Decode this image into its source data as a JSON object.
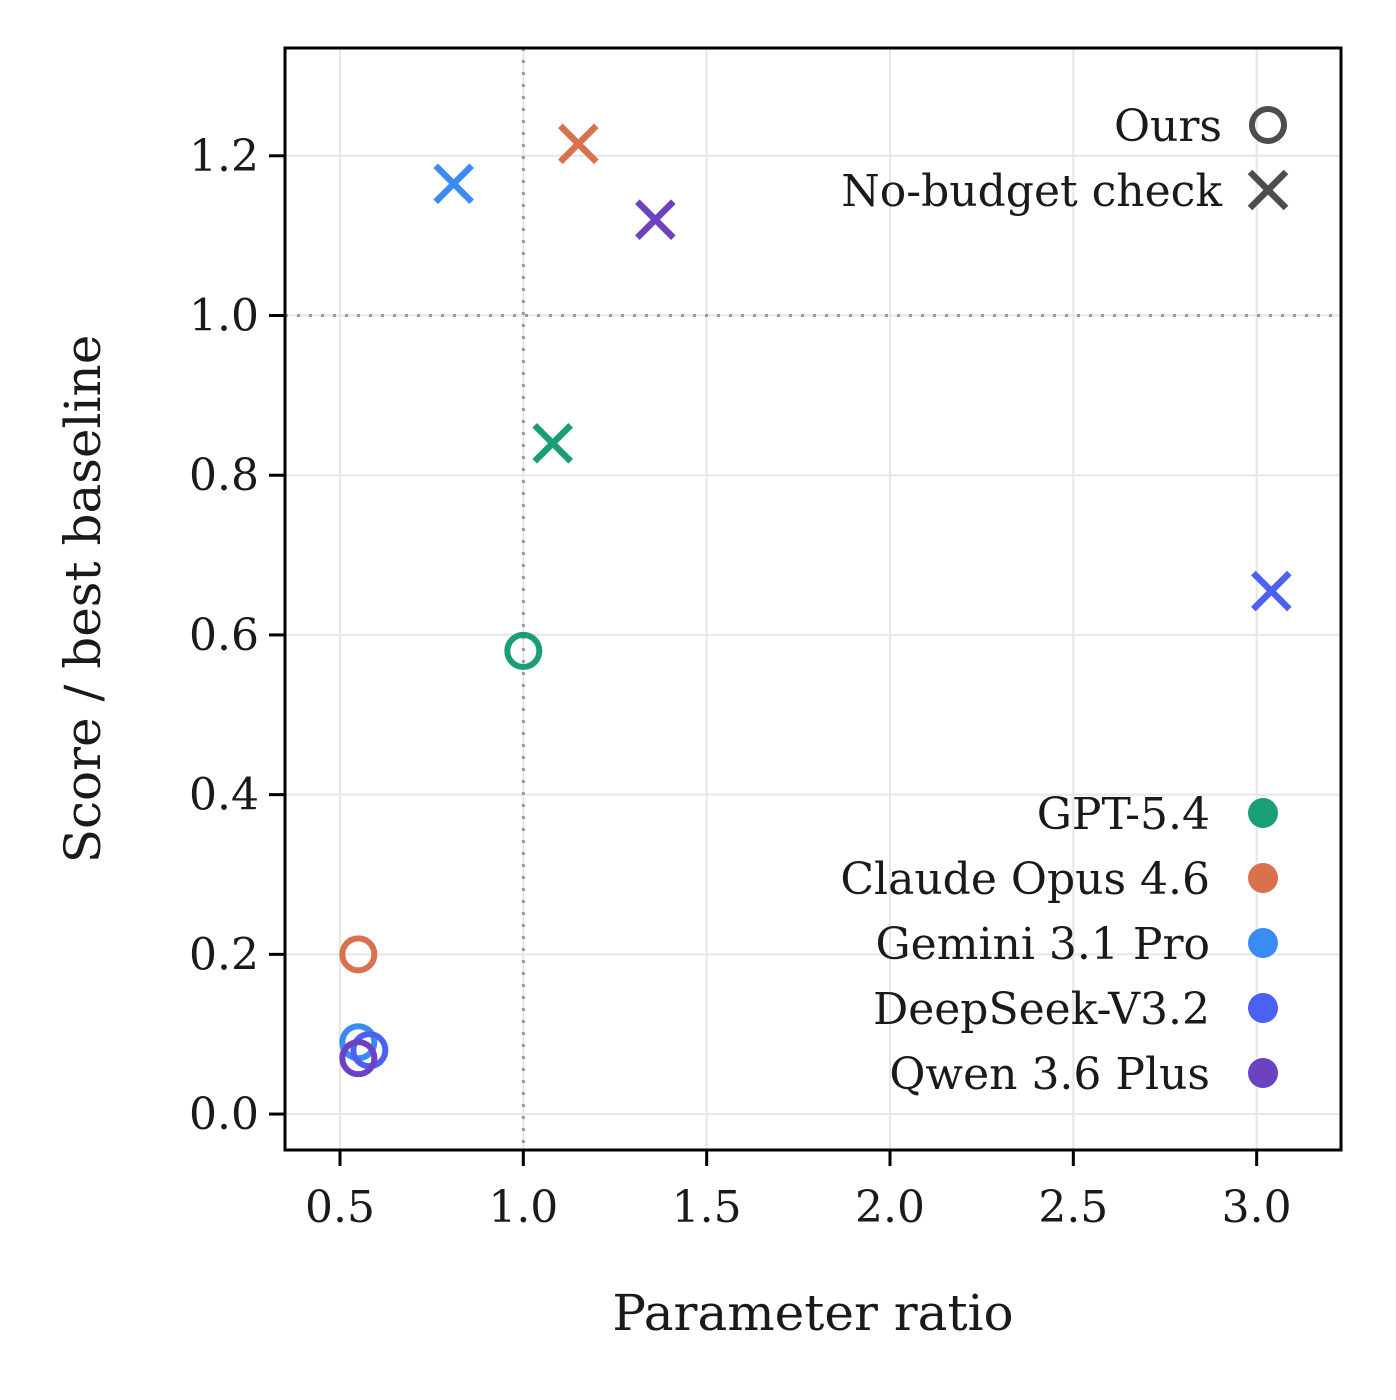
{
  "chart_data": {
    "type": "scatter",
    "xlabel": "Parameter ratio",
    "ylabel": "Score / best baseline",
    "xlim": [
      0.35,
      3.23
    ],
    "ylim": [
      -0.045,
      1.335
    ],
    "xticks": [
      0.5,
      1.0,
      1.5,
      2.0,
      2.5,
      3.0
    ],
    "xtick_labels": [
      "0.5",
      "1.0",
      "1.5",
      "2.0",
      "2.5",
      "3.0"
    ],
    "yticks": [
      0.0,
      0.2,
      0.4,
      0.6,
      0.8,
      1.0,
      1.2
    ],
    "ytick_labels": [
      "0.0",
      "0.2",
      "0.4",
      "0.6",
      "0.8",
      "1.0",
      "1.2"
    ],
    "grid": true,
    "reference_lines": {
      "x": 1.0,
      "y": 1.0
    },
    "marker_legend": {
      "placement": "top-right",
      "entries": [
        {
          "label": "Ours",
          "marker": "circle-open"
        },
        {
          "label": "No-budget check",
          "marker": "x"
        }
      ]
    },
    "color_legend": {
      "placement": "bottom-right",
      "entries": [
        {
          "label": "GPT-5.4",
          "color": "#1a9e77"
        },
        {
          "label": "Claude Opus 4.6",
          "color": "#d9714e"
        },
        {
          "label": "Gemini 3.1 Pro",
          "color": "#3b8bf5"
        },
        {
          "label": "DeepSeek-V3.2",
          "color": "#4a61f2"
        },
        {
          "label": "Qwen 3.6 Plus",
          "color": "#6a42c2"
        }
      ]
    },
    "series": [
      {
        "name": "GPT-5.4",
        "color": "#1a9e77",
        "points": [
          {
            "x": 1.0,
            "y": 0.58,
            "marker": "circle-open"
          },
          {
            "x": 1.08,
            "y": 0.84,
            "marker": "x"
          }
        ]
      },
      {
        "name": "Claude Opus 4.6",
        "color": "#d9714e",
        "points": [
          {
            "x": 0.55,
            "y": 0.2,
            "marker": "circle-open"
          },
          {
            "x": 1.15,
            "y": 1.215,
            "marker": "x"
          }
        ]
      },
      {
        "name": "Gemini 3.1 Pro",
        "color": "#3b8bf5",
        "points": [
          {
            "x": 0.55,
            "y": 0.09,
            "marker": "circle-open"
          },
          {
            "x": 0.81,
            "y": 1.165,
            "marker": "x"
          }
        ]
      },
      {
        "name": "DeepSeek-V3.2",
        "color": "#4a61f2",
        "points": [
          {
            "x": 0.58,
            "y": 0.08,
            "marker": "circle-open"
          },
          {
            "x": 3.04,
            "y": 0.655,
            "marker": "x"
          }
        ]
      },
      {
        "name": "Qwen 3.6 Plus",
        "color": "#6a42c2",
        "points": [
          {
            "x": 0.55,
            "y": 0.07,
            "marker": "circle-open"
          },
          {
            "x": 1.36,
            "y": 1.12,
            "marker": "x"
          }
        ]
      }
    ]
  }
}
